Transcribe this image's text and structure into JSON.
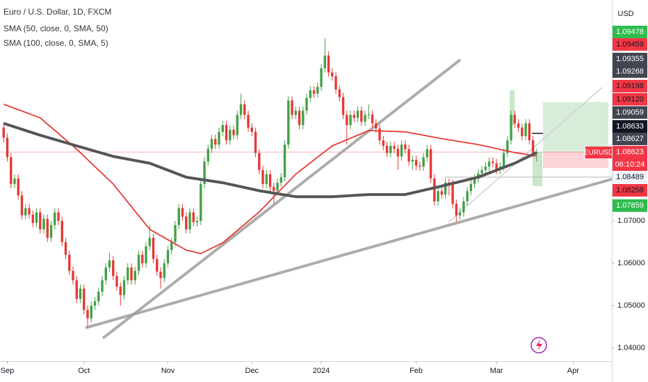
{
  "chart_data": {
    "type": "candlestick",
    "title": "Euro / U.S. Dollar, 1D, FXCM",
    "currency": "USD",
    "up_color": "#43a047",
    "down_color": "#e53935",
    "xlim": [
      -1,
      166.6
    ],
    "ylim": [
      1.0369,
      1.1221
    ],
    "xticks": [
      {
        "value": 1,
        "label": "Sep"
      },
      {
        "value": 22,
        "label": "Oct"
      },
      {
        "value": 45,
        "label": "Nov"
      },
      {
        "value": 68,
        "label": "Dec"
      },
      {
        "value": 87,
        "label": "2024"
      },
      {
        "value": 113,
        "label": "Feb"
      },
      {
        "value": 135,
        "label": "Mar"
      },
      {
        "value": 156,
        "label": "Apr"
      }
    ],
    "yticks": [
      {
        "value": 1.04,
        "label": "1.04000"
      },
      {
        "value": 1.05,
        "label": "1.05000"
      },
      {
        "value": 1.06,
        "label": "1.06000"
      },
      {
        "value": 1.07,
        "label": "1.07000"
      }
    ],
    "ohlc": [
      [
        1.092,
        1.0932,
        1.0884,
        1.0896
      ],
      [
        1.0896,
        1.0906,
        1.084,
        1.085
      ],
      [
        1.085,
        1.086,
        1.0777,
        1.0787
      ],
      [
        1.0787,
        1.081,
        1.0777,
        1.08
      ],
      [
        1.08,
        1.081,
        1.075,
        1.076
      ],
      [
        1.076,
        1.077,
        1.0703,
        1.0713
      ],
      [
        1.0713,
        1.074,
        1.0703,
        1.073
      ],
      [
        1.073,
        1.074,
        1.0705,
        1.0715
      ],
      [
        1.0715,
        1.0725,
        1.0685,
        1.0695
      ],
      [
        1.0695,
        1.073,
        1.0685,
        1.072
      ],
      [
        1.072,
        1.073,
        1.067,
        1.068
      ],
      [
        1.068,
        1.0715,
        1.067,
        1.0705
      ],
      [
        1.0705,
        1.0715,
        1.065,
        1.066
      ],
      [
        1.066,
        1.07,
        1.065,
        1.069
      ],
      [
        1.069,
        1.073,
        1.068,
        1.072
      ],
      [
        1.072,
        1.073,
        1.069,
        1.07
      ],
      [
        1.07,
        1.071,
        1.064,
        1.065
      ],
      [
        1.065,
        1.066,
        1.061,
        1.062
      ],
      [
        1.062,
        1.063,
        1.0572,
        1.0582
      ],
      [
        1.0582,
        1.0592,
        1.055,
        1.056
      ],
      [
        1.056,
        1.057,
        1.0506,
        1.0516
      ],
      [
        1.0516,
        1.055,
        1.0506,
        1.054
      ],
      [
        1.054,
        1.055,
        1.048,
        1.049
      ],
      [
        1.049,
        1.05,
        1.0448,
        1.047
      ],
      [
        1.047,
        1.051,
        1.046,
        1.05
      ],
      [
        1.05,
        1.052,
        1.049,
        1.051
      ],
      [
        1.051,
        1.0543,
        1.05,
        1.0533
      ],
      [
        1.0533,
        1.057,
        1.0523,
        1.056
      ],
      [
        1.056,
        1.06,
        1.055,
        1.059
      ],
      [
        1.059,
        1.0625,
        1.058,
        1.0607
      ],
      [
        1.0607,
        1.0617,
        1.056,
        1.057
      ],
      [
        1.057,
        1.058,
        1.0535,
        1.0545
      ],
      [
        1.0545,
        1.0555,
        1.05,
        1.0525
      ],
      [
        1.0525,
        1.057,
        1.0515,
        1.056
      ],
      [
        1.056,
        1.06,
        1.055,
        1.059
      ],
      [
        1.059,
        1.06,
        1.055,
        1.056
      ],
      [
        1.056,
        1.0592,
        1.055,
        1.0582
      ],
      [
        1.0582,
        1.063,
        1.0572,
        1.062
      ],
      [
        1.062,
        1.063,
        1.059,
        1.06
      ],
      [
        1.06,
        1.065,
        1.059,
        1.064
      ],
      [
        1.064,
        1.069,
        1.063,
        1.066
      ],
      [
        1.066,
        1.067,
        1.06,
        1.061
      ],
      [
        1.061,
        1.062,
        1.057,
        1.058
      ],
      [
        1.058,
        1.059,
        1.054,
        1.0565
      ],
      [
        1.0565,
        1.061,
        1.0555,
        1.06
      ],
      [
        1.06,
        1.0641,
        1.059,
        1.0631
      ],
      [
        1.0631,
        1.066,
        1.0621,
        1.065
      ],
      [
        1.065,
        1.07,
        1.064,
        1.069
      ],
      [
        1.069,
        1.074,
        1.068,
        1.073
      ],
      [
        1.073,
        1.074,
        1.07,
        1.071
      ],
      [
        1.071,
        1.072,
        1.067,
        1.068
      ],
      [
        1.068,
        1.073,
        1.067,
        1.072
      ],
      [
        1.072,
        1.073,
        1.0687,
        1.0697
      ],
      [
        1.0697,
        1.071,
        1.0687,
        1.07
      ],
      [
        1.07,
        1.0797,
        1.069,
        1.0787
      ],
      [
        1.0787,
        1.085,
        1.0777,
        1.084
      ],
      [
        1.084,
        1.088,
        1.083,
        1.087
      ],
      [
        1.087,
        1.0903,
        1.086,
        1.0893
      ],
      [
        1.0893,
        1.0903,
        1.087,
        1.088
      ],
      [
        1.088,
        1.092,
        1.087,
        1.091
      ],
      [
        1.091,
        1.0936,
        1.09,
        1.0926
      ],
      [
        1.0926,
        1.0936,
        1.088,
        1.089
      ],
      [
        1.089,
        1.0925,
        1.088,
        1.0915
      ],
      [
        1.0915,
        1.0925,
        1.0892,
        1.0902
      ],
      [
        1.0902,
        1.096,
        1.0892,
        1.095
      ],
      [
        1.095,
        1.1,
        1.094,
        1.0975
      ],
      [
        1.0975,
        1.0985,
        1.094,
        1.095
      ],
      [
        1.095,
        1.096,
        1.091,
        1.092
      ],
      [
        1.092,
        1.093,
        1.09,
        1.091
      ],
      [
        1.091,
        1.092,
        1.085,
        1.086
      ],
      [
        1.086,
        1.087,
        1.081,
        1.082
      ],
      [
        1.082,
        1.083,
        1.0777,
        1.0787
      ],
      [
        1.0787,
        1.082,
        1.0777,
        1.081
      ],
      [
        1.081,
        1.082,
        1.077,
        1.078
      ],
      [
        1.078,
        1.079,
        1.074,
        1.0771
      ],
      [
        1.0771,
        1.08,
        1.0761,
        1.079
      ],
      [
        1.079,
        1.0813,
        1.078,
        1.0803
      ],
      [
        1.0803,
        1.089,
        1.0793,
        1.088
      ],
      [
        1.088,
        1.0994,
        1.087,
        1.0984
      ],
      [
        1.0984,
        1.0994,
        1.094,
        1.095
      ],
      [
        1.095,
        1.097,
        1.094,
        1.096
      ],
      [
        1.096,
        1.097,
        1.0916,
        1.0926
      ],
      [
        1.0926,
        1.097,
        1.0916,
        1.096
      ],
      [
        1.096,
        1.1,
        1.095,
        1.099
      ],
      [
        1.099,
        1.1018,
        1.098,
        1.1008
      ],
      [
        1.1008,
        1.1018,
        1.099,
        1.1
      ],
      [
        1.1,
        1.1026,
        1.099,
        1.1016
      ],
      [
        1.1016,
        1.107,
        1.1006,
        1.106
      ],
      [
        1.106,
        1.1131,
        1.105,
        1.109
      ],
      [
        1.109,
        1.11,
        1.104,
        1.105
      ],
      [
        1.105,
        1.106,
        1.1031,
        1.1041
      ],
      [
        1.1041,
        1.1051,
        1.1,
        1.101
      ],
      [
        1.101,
        1.102,
        1.0982,
        1.0992
      ],
      [
        1.0992,
        1.1002,
        1.094,
        1.095
      ],
      [
        1.095,
        1.096,
        1.088,
        1.0926
      ],
      [
        1.0926,
        1.096,
        1.0916,
        1.095
      ],
      [
        1.095,
        1.096,
        1.0933,
        1.0943
      ],
      [
        1.0943,
        1.097,
        1.0933,
        1.096
      ],
      [
        1.096,
        1.097,
        1.0924,
        1.0934
      ],
      [
        1.0934,
        1.096,
        1.0924,
        1.095
      ],
      [
        1.095,
        1.0975,
        1.094,
        1.0951
      ],
      [
        1.0951,
        1.0961,
        1.092,
        1.093
      ],
      [
        1.093,
        1.094,
        1.0908,
        1.0918
      ],
      [
        1.0918,
        1.0928,
        1.088,
        1.089
      ],
      [
        1.089,
        1.09,
        1.0867,
        1.0877
      ],
      [
        1.0877,
        1.0887,
        1.085,
        1.086
      ],
      [
        1.086,
        1.0887,
        1.085,
        1.0877
      ],
      [
        1.0877,
        1.0887,
        1.086,
        1.087
      ],
      [
        1.087,
        1.088,
        1.082,
        1.0852
      ],
      [
        1.0852,
        1.089,
        1.0842,
        1.088
      ],
      [
        1.088,
        1.089,
        1.0859,
        1.0869
      ],
      [
        1.0869,
        1.0879,
        1.083,
        1.084
      ],
      [
        1.084,
        1.0854,
        1.082,
        1.0844
      ],
      [
        1.0844,
        1.0854,
        1.082,
        1.083
      ],
      [
        1.083,
        1.084,
        1.0818,
        1.0828
      ],
      [
        1.0828,
        1.086,
        1.0818,
        1.085
      ],
      [
        1.085,
        1.0879,
        1.084,
        1.0869
      ],
      [
        1.0869,
        1.0879,
        1.079,
        1.08
      ],
      [
        1.08,
        1.081,
        1.0736,
        1.0746
      ],
      [
        1.0746,
        1.078,
        1.0736,
        1.077
      ],
      [
        1.077,
        1.078,
        1.0752,
        1.0762
      ],
      [
        1.0762,
        1.08,
        1.0752,
        1.079
      ],
      [
        1.079,
        1.08,
        1.076,
        1.0787
      ],
      [
        1.0787,
        1.0797,
        1.073,
        1.074
      ],
      [
        1.074,
        1.075,
        1.0697,
        1.0713
      ],
      [
        1.0713,
        1.073,
        1.0703,
        1.072
      ],
      [
        1.072,
        1.0756,
        1.071,
        1.0746
      ],
      [
        1.0746,
        1.078,
        1.0736,
        1.077
      ],
      [
        1.077,
        1.0797,
        1.076,
        1.0787
      ],
      [
        1.0787,
        1.081,
        1.0777,
        1.08
      ],
      [
        1.08,
        1.0822,
        1.079,
        1.0812
      ],
      [
        1.0812,
        1.083,
        1.0802,
        1.082
      ],
      [
        1.082,
        1.0838,
        1.081,
        1.0828
      ],
      [
        1.0828,
        1.085,
        1.0818,
        1.084
      ],
      [
        1.084,
        1.085,
        1.0826,
        1.0836
      ],
      [
        1.0836,
        1.0846,
        1.081,
        1.082
      ],
      [
        1.082,
        1.0838,
        1.081,
        1.0828
      ],
      [
        1.0828,
        1.087,
        1.0818,
        1.086
      ],
      [
        1.086,
        1.09,
        1.085,
        1.089
      ],
      [
        1.089,
        1.096,
        1.088,
        1.095
      ],
      [
        1.095,
        1.096,
        1.092,
        1.093
      ],
      [
        1.093,
        1.094,
        1.091,
        1.092
      ],
      [
        1.092,
        1.093,
        1.089,
        1.09
      ],
      [
        1.09,
        1.094,
        1.089,
        1.093
      ],
      [
        1.093,
        1.094,
        1.088,
        1.089
      ],
      [
        1.089,
        1.09,
        1.085,
        1.086
      ],
      [
        1.086,
        1.087,
        1.084,
        1.0862
      ]
    ],
    "series": [
      {
        "name": "SMA (50, close, 0, SMA, 50)",
        "color": "#e53935",
        "x": [
          0,
          10,
          20,
          30,
          40,
          50,
          54,
          60,
          70,
          80,
          90,
          100,
          110,
          120,
          130,
          140,
          146
        ],
        "values": [
          1.0975,
          1.0943,
          1.0869,
          1.0787,
          1.068,
          1.0631,
          1.0623,
          1.0648,
          1.0721,
          1.081,
          1.0877,
          1.0913,
          1.091,
          1.0894,
          1.088,
          1.0861,
          1.0853
        ]
      },
      {
        "name": "SMA (100, close, 0, SMA, 5)",
        "color": "#555555",
        "x": [
          0,
          10,
          20,
          30,
          40,
          50,
          60,
          70,
          80,
          90,
          100,
          110,
          120,
          130,
          140,
          146
        ],
        "values": [
          1.093,
          1.0902,
          1.0877,
          1.0852,
          1.0836,
          1.0803,
          1.079,
          1.0771,
          1.0757,
          1.0757,
          1.0762,
          1.0762,
          1.0782,
          1.0803,
          1.0836,
          1.0861
        ]
      }
    ],
    "price_tags": [
      {
        "value": 1.09478,
        "label": "1.09478",
        "color": "#2ebd4e"
      },
      {
        "value": 1.09459,
        "label": "1.09459",
        "color": "#f23645"
      },
      {
        "value": 1.09355,
        "label": "1.09355",
        "color": "#434651"
      },
      {
        "value": 1.09268,
        "label": "1.09268",
        "color": "#434651"
      },
      {
        "value": 1.09198,
        "label": "1.09198",
        "color": "#f23645"
      },
      {
        "value": 1.0912,
        "label": "1.09120",
        "color": "#f23645"
      },
      {
        "value": 1.09059,
        "label": "1.09059",
        "color": "#434651"
      },
      {
        "value": 1.08633,
        "label": "1.08633",
        "color": "#131722"
      },
      {
        "value": 1.08627,
        "label": "1.08627",
        "color": "#434651"
      },
      {
        "value": 1.08489,
        "label": "1.08489",
        "color": "#f0f3fa"
      },
      {
        "value": 1.08258,
        "label": "1.08258",
        "color": "#f23645"
      },
      {
        "value": 1.07859,
        "label": "1.07859",
        "color": "#2ebd4e"
      }
    ],
    "symbol": "EURUSD",
    "last_price": 1.08623,
    "countdown": "06:10:24"
  }
}
